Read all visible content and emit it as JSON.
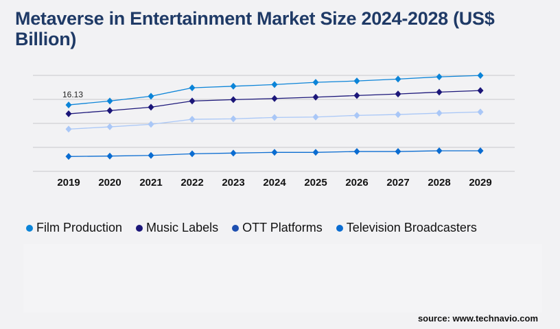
{
  "title": "Metaverse in Entertainment Market Size 2024-2028 (US$ Billion)",
  "source": "source: www.technavio.com",
  "chart_data": {
    "type": "line",
    "title": "Metaverse in Entertainment Market Size 2024-2028 (US$ Billion)",
    "x": [
      "2019",
      "2020",
      "2021",
      "2022",
      "2023",
      "2024",
      "2025",
      "2026",
      "2027",
      "2028",
      "2029"
    ],
    "ylim": [
      0,
      23.3
    ],
    "grid": true,
    "legend_position": "bottom",
    "annotations": [
      {
        "series": "Film Production",
        "x": "2019",
        "text": "16.13"
      }
    ],
    "series": [
      {
        "name": "Film Production",
        "color": "#0b84d8",
        "marker_color": "#0b84d8",
        "values": [
          16.13,
          17.08,
          18.24,
          20.29,
          20.67,
          21.07,
          21.62,
          21.95,
          22.4,
          22.95,
          23.28
        ]
      },
      {
        "name": "Music Labels",
        "color": "#1b1679",
        "marker_color": "#1b1679",
        "values": [
          13.97,
          14.75,
          15.58,
          17.08,
          17.41,
          17.68,
          18.01,
          18.41,
          18.79,
          19.24,
          19.62
        ]
      },
      {
        "name": "OTT Platforms",
        "color": "#a9c7f7",
        "marker_color": "#1e4fb0",
        "values": [
          10.26,
          10.81,
          11.42,
          12.64,
          12.75,
          13.09,
          13.19,
          13.59,
          13.8,
          14.14,
          14.42
        ]
      },
      {
        "name": "Television Broadcasters",
        "color": "#0a6cd1",
        "marker_color": "#0a6cd1",
        "values": [
          3.61,
          3.71,
          3.87,
          4.27,
          4.44,
          4.61,
          4.61,
          4.82,
          4.82,
          4.99,
          4.99
        ]
      }
    ]
  }
}
